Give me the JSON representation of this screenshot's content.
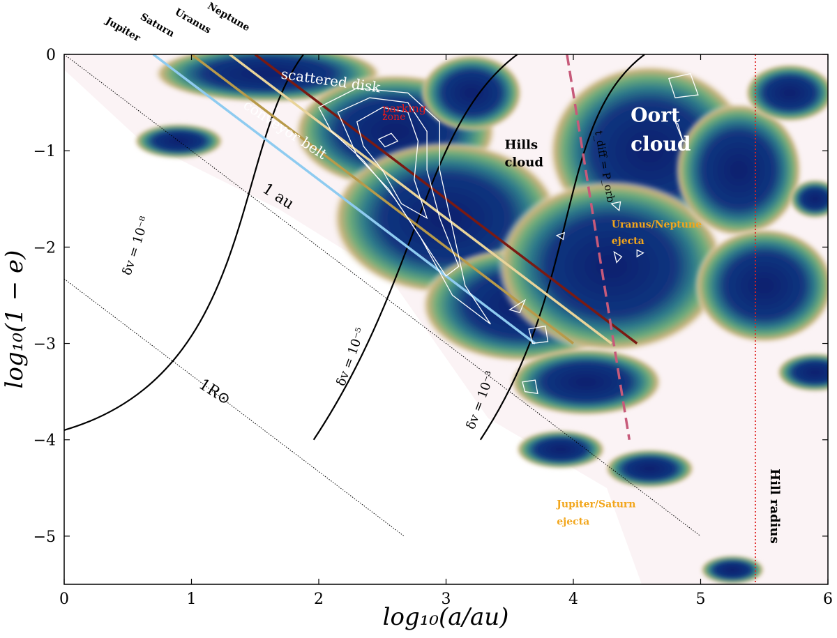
{
  "chart_data": {
    "type": "heatmap",
    "xlabel": "log₁₀(a/au)",
    "ylabel": "log₁₀(1 − e)",
    "xlim": [
      0,
      6
    ],
    "ylim": [
      -5.5,
      0
    ],
    "xticks": [
      0,
      1,
      2,
      3,
      4,
      5,
      6
    ],
    "yticks": [
      0,
      -1,
      -2,
      -3,
      -4,
      -5
    ],
    "xtick_labels": [
      "0",
      "1",
      "2",
      "3",
      "4",
      "5",
      "6"
    ],
    "ytick_labels": [
      "0",
      "−1",
      "−2",
      "−3",
      "−4",
      "−5"
    ],
    "grid": false,
    "colormap": {
      "high": "#0b1f6e",
      "mid": "#3a9a8a",
      "edge": "#c8b37a",
      "low": "#fbf3f5"
    },
    "density_blobs": [
      {
        "x": 0.9,
        "y": -0.9,
        "rx": 0.35,
        "ry": 0.18
      },
      {
        "x": 1.6,
        "y": -0.2,
        "rx": 0.9,
        "ry": 0.3
      },
      {
        "x": 2.6,
        "y": -0.8,
        "rx": 0.8,
        "ry": 0.6
      },
      {
        "x": 3.0,
        "y": -1.7,
        "rx": 0.9,
        "ry": 0.8
      },
      {
        "x": 3.6,
        "y": -2.6,
        "rx": 0.8,
        "ry": 0.6
      },
      {
        "x": 3.2,
        "y": -0.4,
        "rx": 0.4,
        "ry": 0.4
      },
      {
        "x": 4.6,
        "y": -1.0,
        "rx": 0.8,
        "ry": 0.9
      },
      {
        "x": 4.3,
        "y": -2.2,
        "rx": 0.9,
        "ry": 0.9
      },
      {
        "x": 4.1,
        "y": -3.4,
        "rx": 0.6,
        "ry": 0.35
      },
      {
        "x": 5.3,
        "y": -1.2,
        "rx": 0.5,
        "ry": 0.7
      },
      {
        "x": 5.5,
        "y": -2.4,
        "rx": 0.55,
        "ry": 0.6
      },
      {
        "x": 5.7,
        "y": -0.4,
        "rx": 0.35,
        "ry": 0.3
      },
      {
        "x": 3.9,
        "y": -4.1,
        "rx": 0.35,
        "ry": 0.2
      },
      {
        "x": 4.6,
        "y": -4.3,
        "rx": 0.35,
        "ry": 0.2
      },
      {
        "x": 5.25,
        "y": -5.35,
        "rx": 0.25,
        "ry": 0.15
      },
      {
        "x": 5.9,
        "y": -3.3,
        "rx": 0.3,
        "ry": 0.2
      },
      {
        "x": 5.9,
        "y": -1.5,
        "rx": 0.2,
        "ry": 0.2
      }
    ],
    "planet_lines": [
      {
        "name": "Jupiter",
        "color": "#8ecbf0",
        "x": [
          0.7,
          3.7
        ],
        "y": [
          0.0,
          -3.0
        ]
      },
      {
        "name": "Saturn",
        "color": "#b89a4a",
        "x": [
          1.0,
          4.0
        ],
        "y": [
          0.0,
          -3.0
        ]
      },
      {
        "name": "Uranus",
        "color": "#e9d49a",
        "x": [
          1.3,
          4.3
        ],
        "y": [
          0.0,
          -3.0
        ]
      },
      {
        "name": "Neptune",
        "color": "#7a1a12",
        "x": [
          1.5,
          4.5
        ],
        "y": [
          0.0,
          -3.0
        ]
      }
    ],
    "reference_lines": [
      {
        "label": "1 au",
        "x": [
          0.0,
          5.0
        ],
        "y": [
          0.0,
          -5.0
        ]
      },
      {
        "label": "1R⊙",
        "x": [
          0.0,
          2.67
        ],
        "y": [
          -2.33,
          -5.0
        ]
      }
    ],
    "velocity_curves": [
      {
        "label": "δv = 10⁻⁸",
        "x0": 0.0,
        "y0": -3.9,
        "dir": [
          0.96,
          0.28
        ],
        "x1": 1.88,
        "y1": 0.0,
        "dir1": [
          0.6,
          0.8
        ]
      },
      {
        "label": "δv = 10⁻⁵",
        "x0": 1.96,
        "y0": -4.0,
        "dir": [
          0.55,
          0.83
        ],
        "x1": 3.56,
        "y1": 0.0,
        "dir1": [
          0.8,
          0.6
        ]
      },
      {
        "label": "δv = 10⁻³",
        "x0": 3.27,
        "y0": -4.0,
        "dir": [
          0.55,
          0.83
        ],
        "x1": 4.56,
        "y1": 0.0,
        "dir1": [
          0.8,
          0.6
        ]
      }
    ],
    "diffusion_line": {
      "label": "t_diff = P_orb",
      "x": [
        3.95,
        4.44
      ],
      "y": [
        0.0,
        -4.0
      ],
      "color": "#c75a7a"
    },
    "hill_radius": {
      "label": "Hill radius",
      "x": 5.43,
      "color": "#e02020"
    },
    "contours": [
      [
        [
          2.0,
          -0.55
        ],
        [
          2.3,
          -0.35
        ],
        [
          2.7,
          -0.4
        ],
        [
          2.95,
          -0.7
        ],
        [
          2.95,
          -1.2
        ],
        [
          3.05,
          -1.8
        ],
        [
          3.15,
          -2.4
        ],
        [
          3.35,
          -2.8
        ],
        [
          3.05,
          -2.5
        ],
        [
          2.8,
          -1.9
        ],
        [
          2.6,
          -1.5
        ],
        [
          2.35,
          -1.1
        ],
        [
          2.1,
          -0.8
        ],
        [
          2.0,
          -0.55
        ]
      ],
      [
        [
          2.15,
          -0.6
        ],
        [
          2.4,
          -0.45
        ],
        [
          2.7,
          -0.5
        ],
        [
          2.85,
          -0.8
        ],
        [
          2.85,
          -1.2
        ],
        [
          2.95,
          -1.7
        ],
        [
          3.1,
          -2.2
        ],
        [
          3.0,
          -2.3
        ],
        [
          2.75,
          -1.8
        ],
        [
          2.55,
          -1.4
        ],
        [
          2.3,
          -1.05
        ],
        [
          2.15,
          -0.6
        ]
      ],
      [
        [
          2.3,
          -0.7
        ],
        [
          2.5,
          -0.55
        ],
        [
          2.7,
          -0.6
        ],
        [
          2.78,
          -0.9
        ],
        [
          2.75,
          -1.3
        ],
        [
          2.85,
          -1.7
        ],
        [
          2.65,
          -1.55
        ],
        [
          2.5,
          -1.2
        ],
        [
          2.35,
          -0.95
        ],
        [
          2.3,
          -0.7
        ]
      ],
      [
        [
          2.47,
          -0.88
        ],
        [
          2.57,
          -0.82
        ],
        [
          2.62,
          -0.9
        ],
        [
          2.52,
          -0.96
        ],
        [
          2.47,
          -0.88
        ]
      ],
      [
        [
          4.75,
          -0.25
        ],
        [
          4.92,
          -0.2
        ],
        [
          4.98,
          -0.42
        ],
        [
          4.8,
          -0.45
        ],
        [
          4.75,
          -0.25
        ]
      ],
      [
        [
          3.65,
          -2.85
        ],
        [
          3.78,
          -2.82
        ],
        [
          3.8,
          -2.98
        ],
        [
          3.68,
          -3.0
        ],
        [
          3.65,
          -2.85
        ]
      ],
      [
        [
          3.6,
          -3.4
        ],
        [
          3.7,
          -3.38
        ],
        [
          3.72,
          -3.52
        ],
        [
          3.62,
          -3.5
        ],
        [
          3.6,
          -3.4
        ]
      ],
      [
        [
          3.5,
          -2.65
        ],
        [
          3.62,
          -2.55
        ],
        [
          3.58,
          -2.68
        ],
        [
          3.5,
          -2.65
        ]
      ],
      [
        [
          4.3,
          -1.55
        ],
        [
          4.37,
          -1.53
        ],
        [
          4.36,
          -1.62
        ],
        [
          4.3,
          -1.55
        ]
      ],
      [
        [
          4.32,
          -2.05
        ],
        [
          4.38,
          -2.1
        ],
        [
          4.34,
          -2.16
        ],
        [
          4.32,
          -2.05
        ]
      ],
      [
        [
          4.5,
          -2.03
        ],
        [
          4.55,
          -2.06
        ],
        [
          4.5,
          -2.1
        ],
        [
          4.5,
          -2.03
        ]
      ],
      [
        [
          3.87,
          -1.88
        ],
        [
          3.93,
          -1.85
        ],
        [
          3.92,
          -1.92
        ],
        [
          3.87,
          -1.88
        ]
      ],
      [
        [
          4.8,
          -0.7
        ],
        [
          4.86,
          -0.9
        ],
        [
          4.82,
          -0.72
        ],
        [
          4.8,
          -0.7
        ]
      ]
    ],
    "annotations": [
      {
        "text": "scattered disk",
        "x": 1.7,
        "y": -0.25,
        "color": "#ffffff",
        "size": 20,
        "rotate": 8
      },
      {
        "text": "conveyor belt",
        "x": 1.4,
        "y": -0.55,
        "color": "#ffffff",
        "size": 20,
        "rotate": 33
      },
      {
        "text": "parking",
        "x": 2.5,
        "y": -0.6,
        "color": "#e81a1a",
        "size": 16,
        "rotate": 0
      },
      {
        "text": "zone",
        "x": 2.5,
        "y": -0.68,
        "color": "#e81a1a",
        "size": 14,
        "rotate": 0
      },
      {
        "text": "Oort",
        "x": 4.45,
        "y": -0.7,
        "color": "#ffffff",
        "size": 28,
        "rotate": 0,
        "bold": true
      },
      {
        "text": "cloud",
        "x": 4.45,
        "y": -1.0,
        "color": "#ffffff",
        "size": 28,
        "rotate": 0,
        "bold": true
      },
      {
        "text": "Hills",
        "x": 3.46,
        "y": -0.98,
        "color": "#000000",
        "size": 18,
        "rotate": 0,
        "bold": true
      },
      {
        "text": "cloud",
        "x": 3.46,
        "y": -1.16,
        "color": "#000000",
        "size": 18,
        "rotate": 0,
        "bold": true
      },
      {
        "text": "Uranus/Neptune",
        "x": 4.3,
        "y": -1.8,
        "color": "#f2a61c",
        "size": 14,
        "rotate": 0,
        "bold": true
      },
      {
        "text": "ejecta",
        "x": 4.3,
        "y": -1.97,
        "color": "#f2a61c",
        "size": 14,
        "rotate": 0,
        "bold": true
      },
      {
        "text": "Jupiter/Saturn",
        "x": 3.87,
        "y": -4.7,
        "color": "#f2a61c",
        "size": 14,
        "rotate": 0,
        "bold": true
      },
      {
        "text": "ejecta",
        "x": 3.87,
        "y": -4.88,
        "color": "#f2a61c",
        "size": 14,
        "rotate": 0,
        "bold": true
      },
      {
        "text": "1 au",
        "x": 1.55,
        "y": -1.42,
        "color": "#000000",
        "size": 22,
        "rotate": 33
      },
      {
        "text": "1R⊙",
        "x": 1.05,
        "y": -3.45,
        "color": "#000000",
        "size": 22,
        "rotate": 33
      },
      {
        "text": "δv = 10⁻⁸",
        "x": 0.52,
        "y": -2.3,
        "color": "#000000",
        "size": 18,
        "rotate": -72
      },
      {
        "text": "δv = 10⁻⁵",
        "x": 2.2,
        "y": -3.45,
        "color": "#000000",
        "size": 18,
        "rotate": -70
      },
      {
        "text": "δv = 10⁻³",
        "x": 3.22,
        "y": -3.9,
        "color": "#000000",
        "size": 18,
        "rotate": -70
      },
      {
        "text": "t_diff = P_orb",
        "x": 4.17,
        "y": -0.8,
        "color": "#000000",
        "size": 15,
        "rotate": 80
      },
      {
        "text": "Hill radius",
        "x": 5.55,
        "y": -4.3,
        "color": "#000000",
        "size": 18,
        "rotate": 90,
        "bold": true
      }
    ],
    "planet_labels": [
      {
        "text": "Jupiter",
        "x": 0.45
      },
      {
        "text": "Saturn",
        "x": 0.72
      },
      {
        "text": "Uranus",
        "x": 1.0
      },
      {
        "text": "Neptune",
        "x": 1.28
      }
    ]
  }
}
